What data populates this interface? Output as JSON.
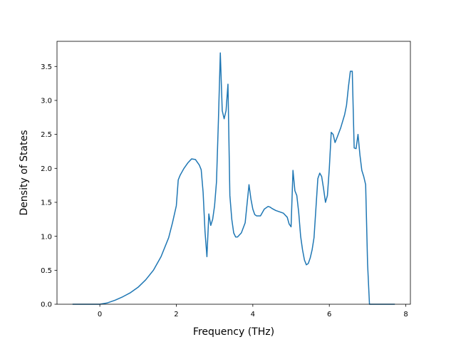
{
  "chart_data": {
    "type": "line",
    "title": "",
    "xlabel": "Frequency (THz)",
    "ylabel": "Density of States",
    "xlim": [
      -1.12,
      8.12
    ],
    "ylim": [
      0,
      3.87
    ],
    "x_ticks": [
      0,
      2,
      4,
      6,
      8
    ],
    "x_tick_labels": [
      "0",
      "2",
      "4",
      "6",
      "8"
    ],
    "y_ticks": [
      0.0,
      0.5,
      1.0,
      1.5,
      2.0,
      2.5,
      3.0,
      3.5
    ],
    "y_tick_labels": [
      "0.0",
      "0.5",
      "1.0",
      "1.5",
      "2.0",
      "2.5",
      "3.0",
      "3.5"
    ],
    "grid": false,
    "legend": "none",
    "series": [
      {
        "color": "#1f77b4",
        "x": [
          -0.7,
          -0.3,
          0.0,
          0.2,
          0.4,
          0.6,
          0.8,
          1.0,
          1.2,
          1.4,
          1.6,
          1.8,
          1.9,
          2.0,
          2.05,
          2.1,
          2.15,
          2.2,
          2.3,
          2.4,
          2.5,
          2.6,
          2.65,
          2.7,
          2.75,
          2.8,
          2.85,
          2.9,
          2.95,
          3.0,
          3.05,
          3.1,
          3.15,
          3.2,
          3.25,
          3.3,
          3.35,
          3.4,
          3.45,
          3.5,
          3.55,
          3.6,
          3.7,
          3.8,
          3.9,
          3.95,
          4.0,
          4.05,
          4.1,
          4.2,
          4.3,
          4.4,
          4.45,
          4.5,
          4.6,
          4.7,
          4.8,
          4.9,
          4.95,
          5.0,
          5.05,
          5.1,
          5.15,
          5.2,
          5.25,
          5.3,
          5.35,
          5.4,
          5.45,
          5.5,
          5.55,
          5.6,
          5.7,
          5.75,
          5.8,
          5.85,
          5.9,
          5.95,
          6.0,
          6.05,
          6.1,
          6.15,
          6.2,
          6.3,
          6.4,
          6.45,
          6.5,
          6.55,
          6.6,
          6.65,
          6.7,
          6.75,
          6.8,
          6.85,
          6.9,
          6.95,
          7.0,
          7.05,
          7.2,
          7.4,
          7.7
        ],
        "y": [
          0.0,
          0.0,
          0.0,
          0.02,
          0.06,
          0.11,
          0.17,
          0.25,
          0.36,
          0.5,
          0.7,
          0.98,
          1.2,
          1.45,
          1.83,
          1.9,
          1.95,
          2.0,
          2.08,
          2.14,
          2.13,
          2.05,
          1.98,
          1.65,
          1.07,
          0.7,
          1.33,
          1.16,
          1.25,
          1.45,
          1.8,
          2.7,
          3.7,
          2.85,
          2.73,
          2.85,
          3.24,
          1.6,
          1.25,
          1.05,
          0.99,
          0.99,
          1.05,
          1.2,
          1.76,
          1.55,
          1.4,
          1.32,
          1.3,
          1.3,
          1.4,
          1.44,
          1.43,
          1.41,
          1.38,
          1.36,
          1.34,
          1.28,
          1.18,
          1.14,
          1.97,
          1.67,
          1.6,
          1.35,
          1.0,
          0.8,
          0.65,
          0.58,
          0.6,
          0.68,
          0.8,
          0.98,
          1.85,
          1.93,
          1.88,
          1.7,
          1.5,
          1.6,
          2.0,
          2.53,
          2.5,
          2.38,
          2.45,
          2.6,
          2.79,
          2.93,
          3.2,
          3.43,
          3.43,
          2.3,
          2.29,
          2.5,
          2.2,
          1.97,
          1.88,
          1.76,
          0.6,
          0.0,
          0.0,
          0.0,
          0.0
        ]
      }
    ]
  }
}
